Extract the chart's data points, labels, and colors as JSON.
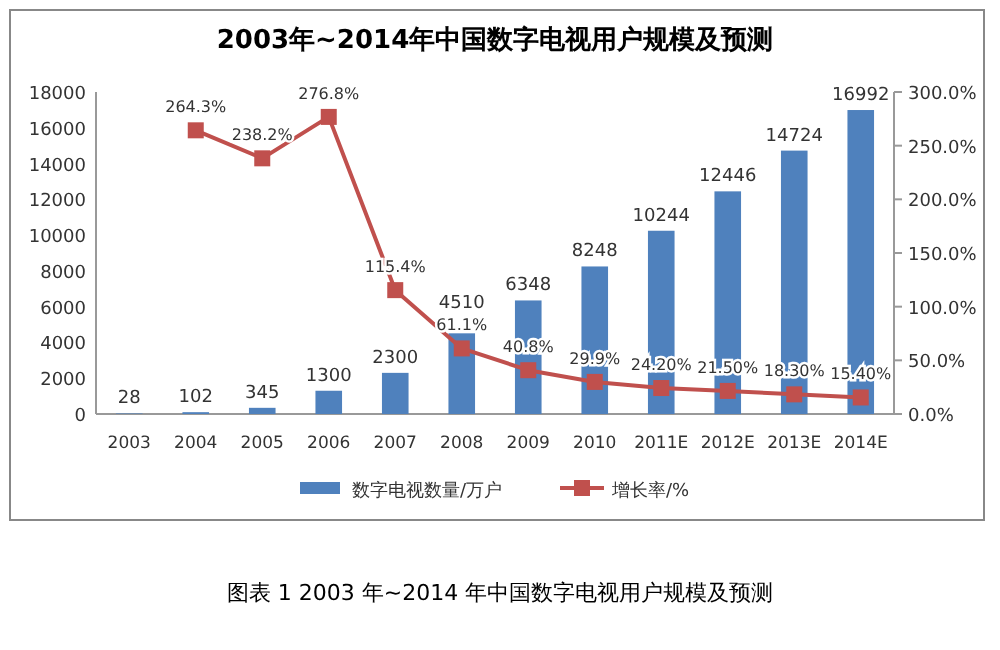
{
  "chart_data": {
    "type": "bar",
    "title": "2003年~2014年中国数字电视用户规模及预测",
    "categories": [
      "2003",
      "2004",
      "2005",
      "2006",
      "2007",
      "2008",
      "2009",
      "2010",
      "2011E",
      "2012E",
      "2013E",
      "2014E"
    ],
    "series": [
      {
        "name": "数字电视数量/万户",
        "color": "#4f81bd",
        "values": [
          28,
          102,
          345,
          1300,
          2300,
          4510,
          6348,
          8248,
          10244,
          12446,
          14724,
          16992
        ],
        "value_labels": [
          "28",
          "102",
          "345",
          "1300",
          "2300",
          "4510",
          "6348",
          "8248",
          "10244",
          "12446",
          "14724",
          "16992"
        ]
      },
      {
        "name": "增长率/%",
        "type": "line",
        "axis": "y2",
        "color": "#c0504d",
        "marker": "square",
        "values": [
          null,
          264.3,
          238.2,
          276.8,
          115.4,
          61.1,
          40.8,
          29.9,
          24.2,
          21.5,
          18.3,
          15.4
        ],
        "value_labels": [
          null,
          "264.3%",
          "238.2%",
          "276.8%",
          "115.4%",
          "61.1%",
          "40.8%",
          "29.9%",
          "24.20%",
          "21.50%",
          "18.30%",
          "15.40%"
        ]
      }
    ],
    "ylim": [
      0,
      18000
    ],
    "yticks": [
      0,
      2000,
      4000,
      6000,
      8000,
      10000,
      12000,
      14000,
      16000,
      18000
    ],
    "y2lim": [
      0,
      300
    ],
    "y2ticks": [
      {
        "value": 0,
        "label": "0.0%"
      },
      {
        "value": 50,
        "label": "50.0%"
      },
      {
        "value": 100,
        "label": "100.0%"
      },
      {
        "value": 150,
        "label": "150.0%"
      },
      {
        "value": 200,
        "label": "200.0%"
      },
      {
        "value": 250,
        "label": "250.0%"
      },
      {
        "value": 300,
        "label": "300.0%"
      }
    ],
    "grid": false,
    "legend": "bottom",
    "annotations": [
      "图表 1 2003 年~2014 年中国数字电视用户规模及预测"
    ]
  }
}
